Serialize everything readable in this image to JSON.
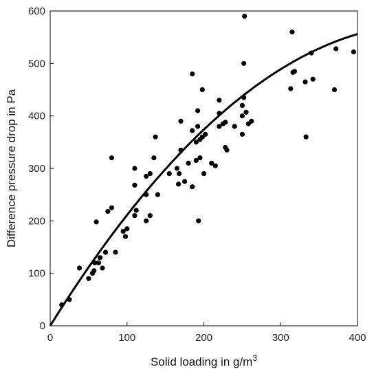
{
  "chart_data": {
    "type": "scatter",
    "title": "",
    "xlabel_main": "Solid loading in g/m",
    "xlabel_sup": "3",
    "ylabel": "Difference pressure drop in Pa",
    "xlim": [
      0,
      400
    ],
    "ylim": [
      0,
      600
    ],
    "xticks": [
      0,
      100,
      200,
      300,
      400
    ],
    "yticks": [
      0,
      100,
      200,
      300,
      400,
      500,
      600
    ],
    "grid": false,
    "legend": "none",
    "colors": {
      "points": "#000000",
      "curve": "#000000",
      "axes": "#000000"
    },
    "points": [
      [
        15,
        40
      ],
      [
        25,
        50
      ],
      [
        38,
        110
      ],
      [
        50,
        90
      ],
      [
        55,
        100
      ],
      [
        57,
        105
      ],
      [
        58,
        120
      ],
      [
        60,
        198
      ],
      [
        63,
        120
      ],
      [
        65,
        130
      ],
      [
        68,
        110
      ],
      [
        72,
        140
      ],
      [
        75,
        218
      ],
      [
        80,
        225
      ],
      [
        80,
        320
      ],
      [
        85,
        140
      ],
      [
        95,
        180
      ],
      [
        98,
        170
      ],
      [
        100,
        185
      ],
      [
        110,
        210
      ],
      [
        110,
        268
      ],
      [
        110,
        300
      ],
      [
        112,
        220
      ],
      [
        125,
        200
      ],
      [
        125,
        250
      ],
      [
        125,
        285
      ],
      [
        130,
        290
      ],
      [
        130,
        210
      ],
      [
        135,
        320
      ],
      [
        137,
        360
      ],
      [
        140,
        250
      ],
      [
        155,
        290
      ],
      [
        165,
        300
      ],
      [
        167,
        270
      ],
      [
        168,
        290
      ],
      [
        170,
        335
      ],
      [
        170,
        390
      ],
      [
        175,
        275
      ],
      [
        180,
        310
      ],
      [
        185,
        265
      ],
      [
        185,
        372
      ],
      [
        185,
        480
      ],
      [
        190,
        350
      ],
      [
        190,
        315
      ],
      [
        192,
        380
      ],
      [
        192,
        410
      ],
      [
        193,
        200
      ],
      [
        195,
        320
      ],
      [
        195,
        355
      ],
      [
        198,
        360
      ],
      [
        198,
        450
      ],
      [
        200,
        290
      ],
      [
        202,
        365
      ],
      [
        210,
        310
      ],
      [
        215,
        305
      ],
      [
        220,
        380
      ],
      [
        220,
        405
      ],
      [
        220,
        430
      ],
      [
        225,
        385
      ],
      [
        228,
        388
      ],
      [
        228,
        340
      ],
      [
        230,
        335
      ],
      [
        240,
        380
      ],
      [
        250,
        365
      ],
      [
        250,
        420
      ],
      [
        250,
        400
      ],
      [
        252,
        435
      ],
      [
        252,
        500
      ],
      [
        253,
        590
      ],
      [
        255,
        407
      ],
      [
        258,
        385
      ],
      [
        262,
        390
      ],
      [
        313,
        452
      ],
      [
        315,
        560
      ],
      [
        316,
        483
      ],
      [
        318,
        485
      ],
      [
        332,
        465
      ],
      [
        333,
        360
      ],
      [
        340,
        520
      ],
      [
        342,
        470
      ],
      [
        370,
        450
      ],
      [
        372,
        528
      ],
      [
        395,
        522
      ]
    ],
    "fit_curve": {
      "type": "polynomial",
      "coefficients": [
        0,
        2.35,
        -0.0024
      ],
      "x_range": [
        0,
        400
      ]
    }
  }
}
